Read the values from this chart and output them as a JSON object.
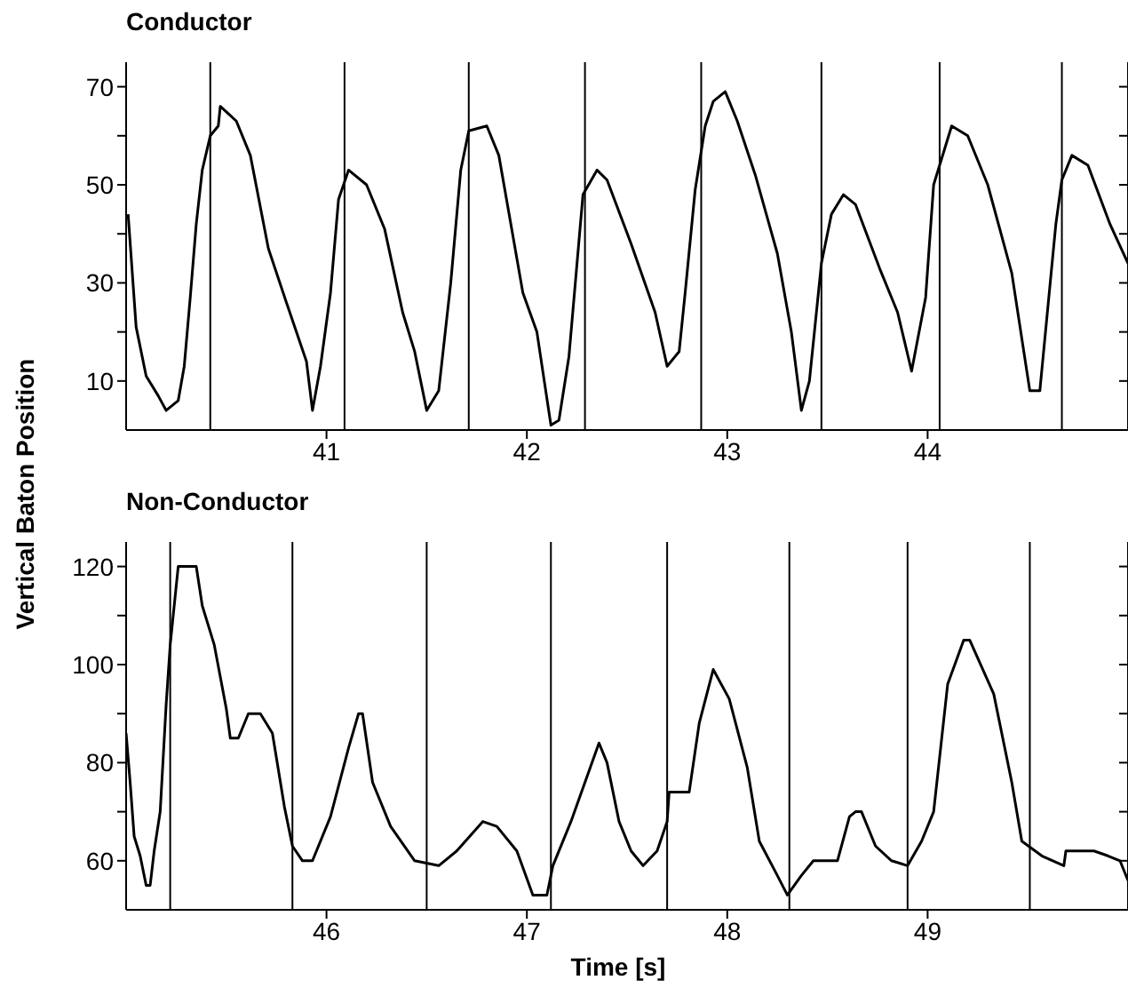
{
  "chart_data": [
    {
      "type": "line",
      "title": "Conductor",
      "ylabel": "Vertical Baton Position",
      "color": "#000000",
      "marker": "none",
      "line_style": "solid",
      "xlim": [
        40,
        45
      ],
      "xticks": [
        41,
        42,
        43,
        44
      ],
      "ylim": [
        0,
        75
      ],
      "yticks": [
        10,
        {
          "value": 20,
          "label": null
        },
        30,
        {
          "value": 40,
          "label": null
        },
        50,
        {
          "value": 60,
          "label": null
        },
        70
      ],
      "ref_lines": [
        {
          "axis": "x",
          "value": 40.42
        },
        {
          "axis": "x",
          "value": 41.09
        },
        {
          "axis": "x",
          "value": 41.71
        },
        {
          "axis": "x",
          "value": 42.29
        },
        {
          "axis": "x",
          "value": 42.87
        },
        {
          "axis": "x",
          "value": 43.47
        },
        {
          "axis": "x",
          "value": 44.06
        },
        {
          "axis": "x",
          "value": 44.67
        }
      ],
      "x": [
        40.01,
        40.05,
        40.1,
        40.16,
        40.2,
        40.26,
        40.29,
        40.32,
        40.35,
        40.38,
        40.42,
        40.46,
        40.47,
        40.55,
        40.62,
        40.71,
        40.8,
        40.9,
        40.93,
        40.97,
        41.02,
        41.06,
        41.11,
        41.2,
        41.29,
        41.38,
        41.44,
        41.5,
        41.56,
        41.62,
        41.67,
        41.71,
        41.8,
        41.86,
        41.98,
        42.05,
        42.12,
        42.16,
        42.21,
        42.28,
        42.35,
        42.4,
        42.52,
        42.64,
        42.7,
        42.76,
        42.79,
        42.84,
        42.89,
        42.93,
        42.99,
        43.05,
        43.14,
        43.25,
        43.32,
        43.37,
        43.41,
        43.47,
        43.52,
        43.58,
        43.64,
        43.76,
        43.85,
        43.92,
        43.99,
        44.03,
        44.12,
        44.2,
        44.3,
        44.42,
        44.51,
        44.56,
        44.64,
        44.67,
        44.72,
        44.8,
        44.91,
        45.0
      ],
      "values": [
        44,
        21,
        11,
        7,
        4,
        6,
        13,
        27,
        42,
        53,
        60,
        62,
        66,
        63,
        56,
        37,
        26,
        14,
        4,
        13,
        28,
        47,
        53,
        50,
        41,
        24,
        16,
        4,
        8,
        30,
        53,
        61,
        62,
        56,
        28,
        20,
        1,
        2,
        15,
        48,
        53,
        51,
        38,
        24,
        13,
        16,
        28,
        49,
        62,
        67,
        69,
        63,
        52,
        36,
        20,
        4,
        10,
        34,
        44,
        48,
        46,
        33,
        24,
        12,
        27,
        50,
        62,
        60,
        50,
        32,
        8,
        8,
        42,
        51,
        56,
        54,
        42,
        34
      ]
    },
    {
      "type": "line",
      "title": "Non-Conductor",
      "xlabel": "Time [s]",
      "color": "#000000",
      "marker": "none",
      "line_style": "solid",
      "xlim": [
        45,
        50
      ],
      "xticks": [
        46,
        47,
        48,
        49
      ],
      "ylim": [
        50,
        125
      ],
      "yticks": [
        60,
        {
          "value": 70,
          "label": null
        },
        80,
        {
          "value": 90,
          "label": null
        },
        100,
        {
          "value": 110,
          "label": null
        },
        120
      ],
      "ref_lines": [
        {
          "axis": "x",
          "value": 45.22
        },
        {
          "axis": "x",
          "value": 45.83
        },
        {
          "axis": "x",
          "value": 46.5
        },
        {
          "axis": "x",
          "value": 47.12
        },
        {
          "axis": "x",
          "value": 47.7
        },
        {
          "axis": "x",
          "value": 48.31
        },
        {
          "axis": "x",
          "value": 48.9
        },
        {
          "axis": "x",
          "value": 49.51
        }
      ],
      "x": [
        45.0,
        45.02,
        45.04,
        45.07,
        45.1,
        45.12,
        45.14,
        45.17,
        45.2,
        45.22,
        45.26,
        45.28,
        45.35,
        45.38,
        45.44,
        45.5,
        45.52,
        45.56,
        45.61,
        45.67,
        45.73,
        45.79,
        45.83,
        45.88,
        45.93,
        46.02,
        46.11,
        46.16,
        46.18,
        46.23,
        46.32,
        46.44,
        46.56,
        46.65,
        46.78,
        46.85,
        46.95,
        47.03,
        47.1,
        47.13,
        47.22,
        47.36,
        47.4,
        47.46,
        47.52,
        47.58,
        47.65,
        47.7,
        47.71,
        47.81,
        47.86,
        47.93,
        48.01,
        48.1,
        48.16,
        48.25,
        48.3,
        48.37,
        48.43,
        48.55,
        48.61,
        48.64,
        48.67,
        48.74,
        48.82,
        48.9,
        48.97,
        49.03,
        49.1,
        49.18,
        49.21,
        49.33,
        49.42,
        49.47,
        49.57,
        49.68,
        49.69,
        49.83,
        49.9,
        49.96,
        50.0
      ],
      "values": [
        86,
        76,
        65,
        61,
        55,
        55,
        62,
        70,
        92,
        104,
        120,
        120,
        120,
        112,
        104,
        91,
        85,
        85,
        90,
        90,
        86,
        71,
        63,
        60,
        60,
        69,
        83,
        90,
        90,
        76,
        67,
        60,
        59,
        62,
        68,
        67,
        62,
        53,
        53,
        59,
        68,
        84,
        80,
        68,
        62,
        59,
        62,
        68,
        74,
        74,
        88,
        99,
        93,
        79,
        64,
        57,
        53,
        57,
        60,
        60,
        69,
        70,
        70,
        63,
        60,
        59,
        64,
        70,
        96,
        105,
        105,
        94,
        76,
        64,
        61,
        59,
        62,
        62,
        61,
        60,
        56
      ]
    }
  ]
}
